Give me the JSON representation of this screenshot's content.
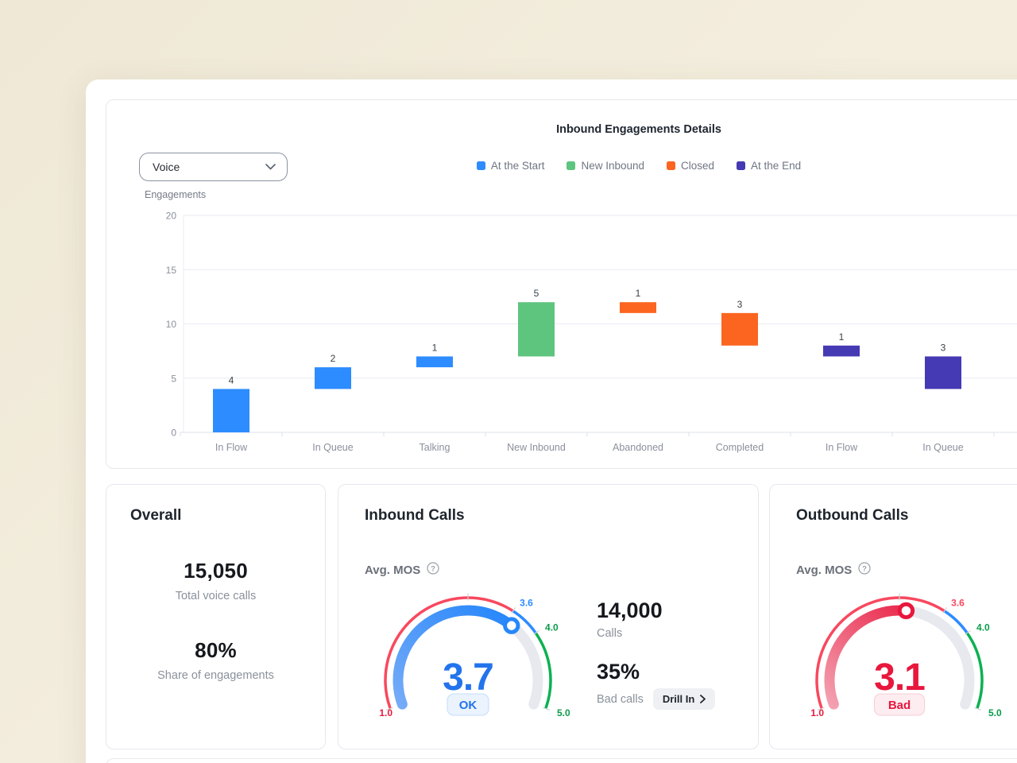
{
  "theme": {
    "page_bg": "#F2ECDC",
    "card_border": "#E6E8EE",
    "help_icon_glyph": "?"
  },
  "chart_card": {
    "title": "Inbound Engagements Details",
    "filter": {
      "value": "Voice"
    },
    "y_axis_title": "Engagements",
    "legend": [
      {
        "label": "At the Start",
        "color": "#2D8CFF"
      },
      {
        "label": "New Inbound",
        "color": "#5EC57E"
      },
      {
        "label": "Closed",
        "color": "#FB6520"
      },
      {
        "label": "At the End",
        "color": "#4539B4"
      }
    ],
    "chart_data": {
      "type": "bar",
      "subtype": "floating waterfall bars",
      "title": "Inbound Engagements Details",
      "xlabel": "",
      "ylabel": "Engagements",
      "ylim": [
        0,
        20
      ],
      "y_ticks": [
        0,
        5,
        10,
        15,
        20
      ],
      "grid": true,
      "legend_position": "top",
      "categories": [
        "In Flow",
        "In Queue",
        "Talking",
        "New Inbound",
        "Abandoned",
        "Completed",
        "In Flow",
        "In Queue"
      ],
      "bars": [
        {
          "category": "In Flow",
          "series": "At the Start",
          "from": 0,
          "to": 4,
          "value": 4
        },
        {
          "category": "In Queue",
          "series": "At the Start",
          "from": 4,
          "to": 6,
          "value": 2
        },
        {
          "category": "Talking",
          "series": "At the Start",
          "from": 6,
          "to": 7,
          "value": 1
        },
        {
          "category": "New Inbound",
          "series": "New Inbound",
          "from": 7,
          "to": 12,
          "value": 5
        },
        {
          "category": "Abandoned",
          "series": "Closed",
          "from": 11,
          "to": 12,
          "value": 1
        },
        {
          "category": "Completed",
          "series": "Closed",
          "from": 8,
          "to": 11,
          "value": 3
        },
        {
          "category": "In Flow",
          "series": "At the End",
          "from": 7,
          "to": 8,
          "value": 1
        },
        {
          "category": "In Queue",
          "series": "At the End",
          "from": 4,
          "to": 7,
          "value": 3
        }
      ]
    }
  },
  "cards": {
    "overall": {
      "title": "Overall",
      "metrics": [
        {
          "value": "15,050",
          "label": "Total voice calls"
        },
        {
          "value": "80%",
          "label": "Share of engagements"
        }
      ]
    },
    "inbound": {
      "title": "Inbound Calls",
      "gauge_label": "Avg. MOS",
      "gauge": {
        "value": "3.7",
        "value_num": 3.7,
        "min": 1.0,
        "max": 5.0,
        "status": "OK",
        "value_color": "#2374EC",
        "bands": [
          {
            "from": 1.0,
            "to": 3.6,
            "color": "#F8485E"
          },
          {
            "from": 3.6,
            "to": 4.0,
            "color": "#2D8CFF"
          },
          {
            "from": 4.0,
            "to": 5.0,
            "color": "#0CB152"
          }
        ],
        "tick_values": [
          1.0,
          3.0,
          3.6,
          4.0,
          5.0
        ],
        "tick_labels": [
          {
            "text": "1.0",
            "value": 1.0,
            "color": "#E8173D"
          },
          {
            "text": "3.6",
            "value": 3.6,
            "color": "#2D8CFF"
          },
          {
            "text": "4.0",
            "value": 4.0,
            "color": "#0B9B4B"
          },
          {
            "text": "5.0",
            "value": 5.0,
            "color": "#0B9B4B"
          }
        ],
        "track_color": "#E7E9EE",
        "progress_colors": [
          "#7FB0F7",
          "#2787FB"
        ],
        "badge": {
          "text": "OK",
          "bg": "#EAF3FE",
          "border": "#C5DDFC",
          "color": "#2374EC"
        }
      },
      "stats": [
        {
          "value": "14,000",
          "label": "Calls"
        },
        {
          "value": "35%",
          "label": "Bad calls"
        }
      ],
      "drill_in": {
        "label": "Drill In"
      }
    },
    "outbound": {
      "title": "Outbound Calls",
      "gauge_label": "Avg. MOS",
      "gauge": {
        "value": "3.1",
        "value_num": 3.1,
        "min": 1.0,
        "max": 5.0,
        "status": "Bad",
        "value_color": "#E8173D",
        "bands": [
          {
            "from": 1.0,
            "to": 3.6,
            "color": "#F8485E"
          },
          {
            "from": 3.6,
            "to": 4.0,
            "color": "#2D8CFF"
          },
          {
            "from": 4.0,
            "to": 5.0,
            "color": "#0CB152"
          }
        ],
        "tick_values": [
          1.0,
          3.0,
          3.6,
          4.0,
          5.0
        ],
        "tick_labels": [
          {
            "text": "1.0",
            "value": 1.0,
            "color": "#E8173D"
          },
          {
            "text": "3.6",
            "value": 3.6,
            "color": "#F8485E"
          },
          {
            "text": "4.0",
            "value": 4.0,
            "color": "#0B9B4B"
          },
          {
            "text": "5.0",
            "value": 5.0,
            "color": "#0B9B4B"
          }
        ],
        "track_color": "#E7E9EE",
        "progress_colors": [
          "#F5B3C0",
          "#E8173D"
        ],
        "badge": {
          "text": "Bad",
          "bg": "#FDEDF0",
          "border": "#F8CCD6",
          "color": "#E8173D"
        }
      }
    }
  }
}
